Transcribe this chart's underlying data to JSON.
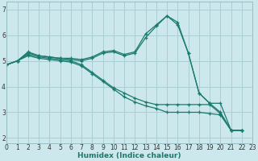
{
  "xlabel": "Humidex (Indice chaleur)",
  "bg_color": "#cce8ec",
  "grid_color": "#aacdd4",
  "line_color": "#1a7a6e",
  "marker": "+",
  "lines": [
    [
      4.85,
      5.0,
      5.35,
      5.2,
      5.15,
      5.1,
      5.1,
      5.05,
      5.15,
      5.35,
      5.4,
      5.25,
      5.35,
      6.05,
      6.4,
      6.75,
      6.5,
      5.3,
      3.75,
      3.35,
      3.35,
      2.3,
      2.3
    ],
    [
      4.85,
      5.0,
      5.3,
      5.2,
      5.15,
      5.1,
      5.05,
      5.0,
      5.1,
      5.3,
      5.35,
      5.2,
      5.3,
      5.9,
      6.35,
      6.75,
      6.4,
      5.3,
      3.75,
      3.35,
      3.0,
      2.3,
      2.3
    ],
    [
      4.85,
      5.0,
      5.25,
      5.15,
      5.1,
      5.05,
      5.0,
      4.85,
      4.55,
      4.25,
      3.95,
      3.75,
      3.55,
      3.4,
      3.3,
      3.3,
      3.3,
      3.3,
      3.3,
      3.3,
      2.95,
      2.3,
      2.3
    ],
    [
      4.85,
      5.0,
      5.2,
      5.1,
      5.05,
      5.0,
      4.95,
      4.8,
      4.5,
      4.2,
      3.9,
      3.6,
      3.4,
      3.25,
      3.15,
      3.0,
      3.0,
      3.0,
      3.0,
      2.95,
      2.9,
      2.3,
      2.3
    ]
  ],
  "x": [
    0,
    1,
    2,
    3,
    4,
    5,
    6,
    7,
    8,
    9,
    10,
    11,
    12,
    13,
    14,
    15,
    16,
    17,
    18,
    19,
    20,
    21,
    22
  ],
  "xlim": [
    0,
    23
  ],
  "ylim": [
    1.8,
    7.3
  ],
  "yticks": [
    2,
    3,
    4,
    5,
    6,
    7
  ],
  "xticks": [
    0,
    1,
    2,
    3,
    4,
    5,
    6,
    7,
    8,
    9,
    10,
    11,
    12,
    13,
    14,
    15,
    16,
    17,
    18,
    19,
    20,
    21,
    22,
    23
  ],
  "tick_fontsize": 5.5,
  "xlabel_fontsize": 6.5,
  "linewidth": 0.9,
  "markersize": 3.0
}
